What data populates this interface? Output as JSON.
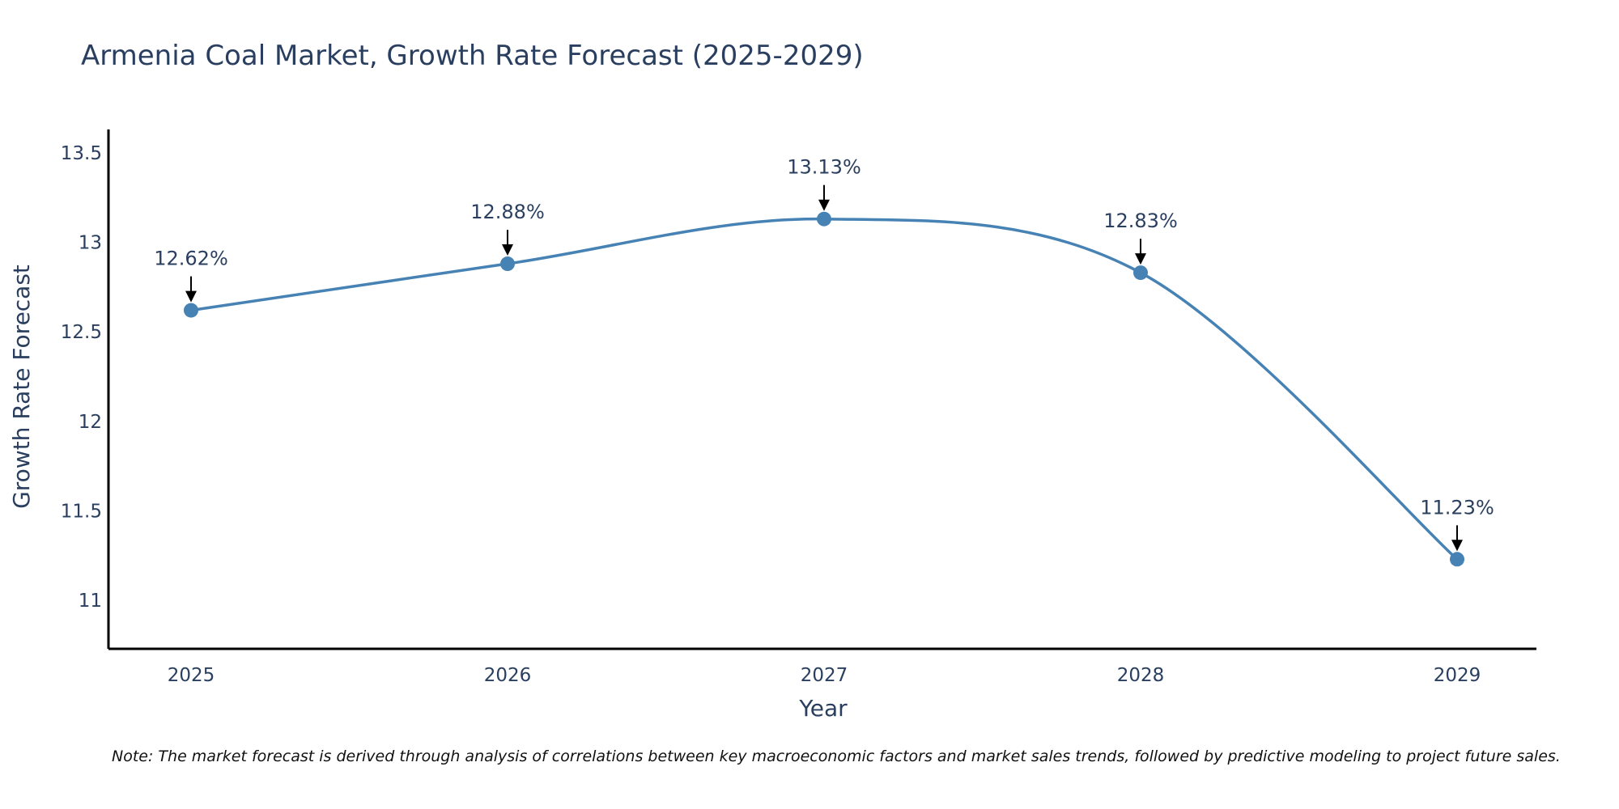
{
  "chart_data": {
    "type": "line",
    "title": "Armenia Coal Market, Growth Rate Forecast (2025-2029)",
    "xlabel": "Year",
    "ylabel": "Growth Rate Forecast",
    "x": [
      "2025",
      "2026",
      "2027",
      "2028",
      "2029"
    ],
    "series": [
      {
        "name": "Growth Rate Forecast",
        "values": [
          12.62,
          12.88,
          13.13,
          12.83,
          11.23
        ],
        "labels": [
          "12.62%",
          "12.88%",
          "13.13%",
          "12.83%",
          "11.23%"
        ]
      }
    ],
    "ylim": [
      10.73,
      13.63
    ],
    "yticks": [
      11,
      11.5,
      12,
      12.5,
      13,
      13.5
    ],
    "ytick_labels": [
      "11",
      "11.5",
      "12",
      "12.5",
      "13",
      "13.5"
    ],
    "grid": false,
    "line_shape": "spline",
    "colors": {
      "line": "#4682b4",
      "marker": "#4682b4",
      "arrow": "#000000",
      "text": "#2a3f5f",
      "axis": "#000000"
    }
  },
  "note": "Note: The market forecast is derived through analysis of correlations between key macroeconomic factors and market sales trends, followed by predictive modeling to project future sales."
}
